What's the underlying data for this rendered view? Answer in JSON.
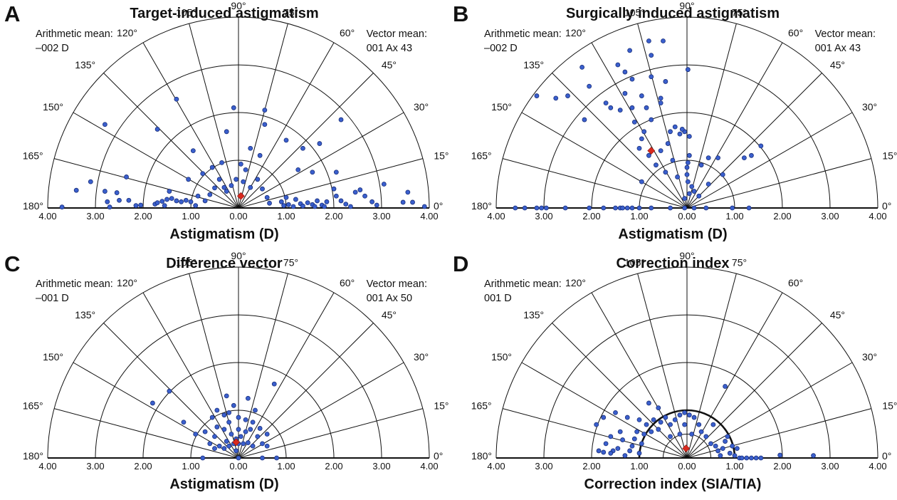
{
  "colors": {
    "points": "#3a5fcd",
    "mean": "#d92a1e",
    "lines": "#111111"
  },
  "chart_data": [
    {
      "type": "scatter",
      "coord": "polar-semicircle",
      "letter": "A",
      "title": "Target-induced astigmatism",
      "xlabel": "Astigmatism (D)",
      "notes": {
        "left": [
          "Arithmetic mean:",
          "–002 D"
        ],
        "right": [
          "Vector mean:",
          "001 Ax 43"
        ]
      },
      "radius_max": 4,
      "rings": [
        1,
        2,
        3,
        4
      ],
      "bold_ring": null,
      "tick_labels": [
        "4.00",
        "3.00",
        "2.00",
        "1.00",
        "0.00",
        "1.00",
        "2.00",
        "3.00",
        "4.00"
      ],
      "angle_labels": [
        "0°",
        "15°",
        "30°",
        "45°",
        "60°",
        "75°",
        "90°",
        "105°",
        "120°",
        "135°",
        "150°",
        "165°",
        "180°"
      ],
      "mean": {
        "x": 0.05,
        "y": 0.25
      },
      "points": [
        [
          -3.7,
          0.02
        ],
        [
          -3.4,
          0.37
        ],
        [
          -3.1,
          0.55
        ],
        [
          -2.8,
          0.35
        ],
        [
          -2.75,
          0.13
        ],
        [
          -2.7,
          0.02
        ],
        [
          -2.55,
          0.32
        ],
        [
          -2.5,
          0.16
        ],
        [
          -2.3,
          0.16
        ],
        [
          -2.15,
          0.05
        ],
        [
          -2.05,
          0.06
        ],
        [
          -1.75,
          0.08
        ],
        [
          -1.7,
          0.11
        ],
        [
          -1.6,
          0.14
        ],
        [
          -1.55,
          0.05
        ],
        [
          -1.5,
          0.18
        ],
        [
          -1.4,
          0.2
        ],
        [
          -1.3,
          0.15
        ],
        [
          -1.2,
          0.13
        ],
        [
          -1.1,
          0.16
        ],
        [
          -1.0,
          0.13
        ],
        [
          -0.9,
          0.05
        ],
        [
          -0.85,
          0.25
        ],
        [
          -0.7,
          0.15
        ],
        [
          -0.6,
          0.28
        ],
        [
          -0.5,
          0.42
        ],
        [
          -0.4,
          0.6
        ],
        [
          -0.3,
          0.43
        ],
        [
          -0.25,
          0.35
        ],
        [
          -0.15,
          0.47
        ],
        [
          -0.05,
          0.6
        ],
        [
          0.1,
          0.55
        ],
        [
          0.15,
          0.8
        ],
        [
          0.25,
          0.43
        ],
        [
          0.4,
          0.6
        ],
        [
          0.5,
          0.4
        ],
        [
          0.6,
          0.22
        ],
        [
          0.65,
          0.1
        ],
        [
          0.9,
          0.13
        ],
        [
          0.95,
          0.05
        ],
        [
          1.0,
          0.22
        ],
        [
          1.05,
          0.07
        ],
        [
          1.15,
          0.03
        ],
        [
          1.2,
          0.18
        ],
        [
          1.3,
          0.09
        ],
        [
          1.35,
          0.04
        ],
        [
          1.45,
          0.11
        ],
        [
          1.55,
          0.07
        ],
        [
          1.6,
          0.03
        ],
        [
          1.65,
          0.15
        ],
        [
          1.75,
          0.06
        ],
        [
          1.8,
          0.03
        ],
        [
          1.85,
          0.13
        ],
        [
          2.0,
          0.4
        ],
        [
          2.05,
          0.25
        ],
        [
          2.15,
          0.15
        ],
        [
          2.25,
          0.08
        ],
        [
          2.35,
          0.03
        ],
        [
          2.45,
          0.33
        ],
        [
          2.55,
          0.38
        ],
        [
          2.65,
          0.25
        ],
        [
          2.8,
          0.13
        ],
        [
          2.9,
          0.06
        ],
        [
          3.05,
          0.5
        ],
        [
          3.45,
          0.12
        ],
        [
          3.55,
          0.33
        ],
        [
          3.65,
          0.12
        ],
        [
          3.9,
          0.03
        ],
        [
          -0.75,
          0.72
        ],
        [
          -0.55,
          0.85
        ],
        [
          0.05,
          0.92
        ],
        [
          0.45,
          1.1
        ],
        [
          0.25,
          1.25
        ],
        [
          -0.25,
          1.6
        ],
        [
          0.55,
          1.75
        ],
        [
          -1.3,
          2.28
        ],
        [
          -0.1,
          2.1
        ],
        [
          0.55,
          2.05
        ],
        [
          -1.7,
          1.65
        ],
        [
          -0.95,
          1.2
        ],
        [
          -1.45,
          0.35
        ],
        [
          1.25,
          0.8
        ],
        [
          1.35,
          1.25
        ],
        [
          1.0,
          1.42
        ],
        [
          1.7,
          1.35
        ],
        [
          2.15,
          1.85
        ],
        [
          1.55,
          0.75
        ],
        [
          -2.8,
          1.75
        ],
        [
          -2.35,
          0.65
        ],
        [
          -0.35,
          0.95
        ],
        [
          2.05,
          0.75
        ],
        [
          -1.05,
          0.6
        ]
      ]
    },
    {
      "type": "scatter",
      "coord": "polar-semicircle",
      "letter": "B",
      "title": "Surgically induced astigmatism",
      "xlabel": "Astigmatism (D)",
      "notes": {
        "left": [
          "Arithmetic mean:",
          "–002 D"
        ],
        "right": [
          "Vector mean:",
          "001 Ax 43"
        ]
      },
      "radius_max": 4,
      "rings": [
        1,
        2,
        3,
        4
      ],
      "bold_ring": null,
      "tick_labels": [
        "4.00",
        "3.00",
        "2.00",
        "1.00",
        "0.00",
        "1.00",
        "2.00",
        "3.00",
        "4.00"
      ],
      "angle_labels": [
        "0°",
        "15°",
        "30°",
        "45°",
        "60°",
        "75°",
        "90°",
        "105°",
        "120°",
        "135°",
        "150°",
        "165°",
        "180°"
      ],
      "mean": {
        "x": -0.75,
        "y": 1.2
      },
      "points": [
        [
          -3.6,
          0.0
        ],
        [
          -3.4,
          0.0
        ],
        [
          -3.15,
          0.0
        ],
        [
          -3.05,
          0.0
        ],
        [
          -2.95,
          0.0
        ],
        [
          -2.55,
          0.0
        ],
        [
          -2.05,
          0.0
        ],
        [
          -1.75,
          0.0
        ],
        [
          -1.5,
          0.0
        ],
        [
          -1.4,
          0.0
        ],
        [
          -1.35,
          0.0
        ],
        [
          -1.25,
          0.0
        ],
        [
          -1.15,
          0.0
        ],
        [
          -1.0,
          0.0
        ],
        [
          -0.75,
          0.0
        ],
        [
          -0.35,
          0.0
        ],
        [
          -0.05,
          0.0
        ],
        [
          0.15,
          0.0
        ],
        [
          0.4,
          0.0
        ],
        [
          0.95,
          0.0
        ],
        [
          1.3,
          0.0
        ],
        [
          -0.05,
          0.2
        ],
        [
          0.05,
          0.3
        ],
        [
          0.15,
          0.35
        ],
        [
          0.1,
          0.45
        ],
        [
          0.25,
          0.25
        ],
        [
          0.02,
          0.55
        ],
        [
          0.0,
          0.7
        ],
        [
          0.0,
          0.85
        ],
        [
          0.02,
          0.95
        ],
        [
          0.05,
          1.1
        ],
        [
          0.3,
          0.9
        ],
        [
          0.45,
          1.05
        ],
        [
          0.05,
          1.5
        ],
        [
          -0.05,
          1.6
        ],
        [
          -0.15,
          1.55
        ],
        [
          -0.25,
          1.7
        ],
        [
          -0.35,
          1.6
        ],
        [
          -0.4,
          1.35
        ],
        [
          -0.55,
          1.2
        ],
        [
          -0.65,
          0.9
        ],
        [
          -0.45,
          0.75
        ],
        [
          -0.8,
          1.1
        ],
        [
          -0.95,
          1.45
        ],
        [
          -1.0,
          1.25
        ],
        [
          -0.9,
          1.6
        ],
        [
          -1.1,
          1.8
        ],
        [
          -1.15,
          2.1
        ],
        [
          -0.85,
          2.1
        ],
        [
          -0.75,
          1.85
        ],
        [
          -0.55,
          2.2
        ],
        [
          -0.95,
          2.35
        ],
        [
          -1.3,
          2.4
        ],
        [
          -1.4,
          2.05
        ],
        [
          -1.7,
          2.2
        ],
        [
          -2.15,
          1.85
        ],
        [
          -2.5,
          2.35
        ],
        [
          -2.75,
          2.3
        ],
        [
          -3.15,
          2.35
        ],
        [
          -2.2,
          2.95
        ],
        [
          -2.05,
          2.55
        ],
        [
          -0.8,
          3.5
        ],
        [
          -0.75,
          3.2
        ],
        [
          -0.75,
          2.75
        ],
        [
          -0.45,
          2.65
        ],
        [
          -0.55,
          2.3
        ],
        [
          -0.5,
          3.5
        ],
        [
          -1.3,
          2.85
        ],
        [
          -1.45,
          3.0
        ],
        [
          -1.2,
          3.3
        ],
        [
          -1.15,
          2.7
        ],
        [
          0.02,
          2.9
        ],
        [
          -0.3,
          1.0
        ],
        [
          -0.2,
          0.65
        ],
        [
          0.45,
          0.5
        ],
        [
          0.65,
          1.05
        ],
        [
          1.2,
          1.05
        ],
        [
          1.35,
          1.1
        ],
        [
          1.55,
          1.3
        ],
        [
          0.75,
          0.7
        ],
        [
          -0.95,
          0.55
        ],
        [
          -0.1,
          1.65
        ],
        [
          -1.6,
          2.1
        ]
      ]
    },
    {
      "type": "scatter",
      "coord": "polar-semicircle",
      "letter": "C",
      "title": "Difference vector",
      "xlabel": "Astigmatism (D)",
      "notes": {
        "left": [
          "Arithmetic mean:",
          "–001 D"
        ],
        "right": [
          "Vector mean:",
          "001 Ax 50"
        ]
      },
      "radius_max": 4,
      "rings": [
        1,
        2,
        3,
        4
      ],
      "bold_ring": null,
      "tick_labels": [
        "4.00",
        "3.00",
        "2.00",
        "1.00",
        "0.00",
        "1.00",
        "2.00",
        "3.00",
        "4.00"
      ],
      "angle_labels": [
        "0°",
        "15°",
        "30°",
        "45°",
        "60°",
        "75°",
        "90°",
        "105°",
        "120°",
        "135°",
        "150°",
        "165°",
        "180°"
      ],
      "mean": {
        "x": -0.05,
        "y": 0.33
      },
      "points": [
        [
          -0.5,
          0.2
        ],
        [
          -0.4,
          0.25
        ],
        [
          -0.3,
          0.2
        ],
        [
          -0.2,
          0.25
        ],
        [
          -0.1,
          0.3
        ],
        [
          0.0,
          0.3
        ],
        [
          0.1,
          0.3
        ],
        [
          0.2,
          0.32
        ],
        [
          0.3,
          0.25
        ],
        [
          -0.25,
          0.35
        ],
        [
          -0.05,
          0.4
        ],
        [
          0.05,
          0.45
        ],
        [
          -0.15,
          0.5
        ],
        [
          0.15,
          0.55
        ],
        [
          -0.3,
          0.6
        ],
        [
          0.0,
          0.6
        ],
        [
          0.25,
          0.6
        ],
        [
          0.4,
          0.45
        ],
        [
          -0.5,
          0.45
        ],
        [
          -0.45,
          0.65
        ],
        [
          -0.2,
          0.75
        ],
        [
          0.0,
          0.85
        ],
        [
          0.15,
          0.8
        ],
        [
          0.3,
          0.75
        ],
        [
          0.45,
          0.62
        ],
        [
          0.5,
          0.3
        ],
        [
          0.6,
          0.25
        ],
        [
          -0.6,
          0.3
        ],
        [
          -0.7,
          0.55
        ],
        [
          -0.3,
          0.9
        ],
        [
          -0.1,
          1.1
        ],
        [
          -0.45,
          1.0
        ],
        [
          0.35,
          1.0
        ],
        [
          0.2,
          1.25
        ],
        [
          -0.25,
          1.3
        ],
        [
          -0.55,
          0.85
        ],
        [
          -0.75,
          0.0
        ],
        [
          -0.05,
          0.15
        ],
        [
          0.5,
          0.0
        ],
        [
          0.8,
          0.0
        ],
        [
          0.0,
          0.0
        ],
        [
          -0.9,
          0.5
        ],
        [
          0.75,
          1.55
        ],
        [
          -0.2,
          0.95
        ],
        [
          -1.15,
          0.75
        ],
        [
          -1.45,
          1.4
        ],
        [
          -1.8,
          1.15
        ],
        [
          0.6,
          0.5
        ]
      ]
    },
    {
      "type": "scatter",
      "coord": "polar-semicircle",
      "letter": "D",
      "title": "Correction index",
      "xlabel": "Correction index (SIA/TIA)",
      "notes": {
        "left": [
          "Arithmetic mean:",
          "001 D"
        ],
        "right": []
      },
      "radius_max": 4,
      "rings": [
        0.5,
        1,
        2,
        3,
        4
      ],
      "bold_ring": 1,
      "tick_labels": [
        "4.00",
        "3.00",
        "2.00",
        "1.00",
        "0.00",
        "1.00",
        "2.00",
        "3.00",
        "4.00"
      ],
      "angle_labels": [
        "0°",
        "15°",
        "30°",
        "45°",
        "60°",
        "75°",
        "90°",
        "105°",
        "120°",
        "135°",
        "150°",
        "165°",
        "180°"
      ],
      "mean": {
        "x": -0.02,
        "y": 0.2
      },
      "points": [
        [
          -1.85,
          0.15
        ],
        [
          -1.75,
          0.12
        ],
        [
          -1.7,
          0.3
        ],
        [
          -1.6,
          0.45
        ],
        [
          -1.55,
          0.15
        ],
        [
          -1.45,
          0.2
        ],
        [
          -1.35,
          0.38
        ],
        [
          -1.3,
          0.05
        ],
        [
          -1.2,
          0.15
        ],
        [
          -1.15,
          0.25
        ],
        [
          -1.1,
          0.4
        ],
        [
          -1.05,
          0.55
        ],
        [
          -1.0,
          0.1
        ],
        [
          -0.95,
          0.3
        ],
        [
          -0.9,
          0.5
        ],
        [
          -0.85,
          0.7
        ],
        [
          -0.75,
          0.55
        ],
        [
          -0.7,
          0.8
        ],
        [
          -0.6,
          0.6
        ],
        [
          -0.55,
          0.75
        ],
        [
          -0.45,
          0.85
        ],
        [
          -0.35,
          0.7
        ],
        [
          -0.25,
          0.8
        ],
        [
          -0.15,
          0.9
        ],
        [
          -0.05,
          0.95
        ],
        [
          0.05,
          0.9
        ],
        [
          0.15,
          0.85
        ],
        [
          0.25,
          0.7
        ],
        [
          0.3,
          0.55
        ],
        [
          0.4,
          0.45
        ],
        [
          0.5,
          0.3
        ],
        [
          0.6,
          0.25
        ],
        [
          0.65,
          0.15
        ],
        [
          0.7,
          0.05
        ],
        [
          0.75,
          0.2
        ],
        [
          0.8,
          0.35
        ],
        [
          0.85,
          0.45
        ],
        [
          0.9,
          0.1
        ],
        [
          0.95,
          0.25
        ],
        [
          1.0,
          0.05
        ],
        [
          1.05,
          0.2
        ],
        [
          1.1,
          0.0
        ],
        [
          1.15,
          0.0
        ],
        [
          1.25,
          0.0
        ],
        [
          1.35,
          0.0
        ],
        [
          1.45,
          0.0
        ],
        [
          1.55,
          0.0
        ],
        [
          1.95,
          0.06
        ],
        [
          2.65,
          0.05
        ],
        [
          -1.9,
          0.7
        ],
        [
          -1.75,
          0.85
        ],
        [
          -1.5,
          0.95
        ],
        [
          -1.25,
          0.85
        ],
        [
          -1.0,
          0.8
        ],
        [
          -0.8,
          1.15
        ],
        [
          -0.6,
          1.05
        ],
        [
          0.8,
          1.5
        ],
        [
          -0.35,
          0.45
        ],
        [
          -0.15,
          0.5
        ],
        [
          0.1,
          0.5
        ],
        [
          -0.05,
          0.7
        ],
        [
          0.55,
          0.7
        ],
        [
          -1.4,
          0.55
        ],
        [
          -1.6,
          0.1
        ]
      ]
    }
  ]
}
